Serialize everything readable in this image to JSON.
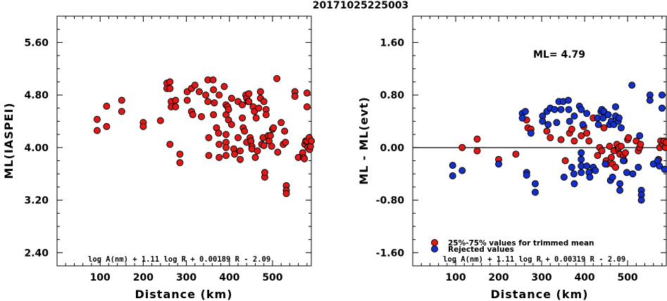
{
  "title": "20171025225003",
  "colors": {
    "accepted": "#e01818",
    "rejected": "#1530c8",
    "outline": "#000000"
  },
  "chart_data": [
    {
      "type": "scatter",
      "xlabel": "Distance (km)",
      "ylabel": "ML(IASPEI)",
      "xlim": [
        0,
        590
      ],
      "ylim": [
        2.2,
        6.0
      ],
      "x_ticks": [
        100,
        200,
        300,
        400,
        500
      ],
      "y_ticks": [
        2.4,
        3.2,
        4.0,
        4.8,
        5.6
      ],
      "y_tick_labels": [
        "2.40",
        "3.20",
        "4.00",
        "4.80",
        "5.60"
      ],
      "formula": "log A(nm) + 1.11 log R + 0.00189 R - 2.09",
      "series": [
        {
          "color": "#e01818",
          "points": [
            [
              93,
              4.43
            ],
            [
              93,
              4.26
            ],
            [
              115,
              4.63
            ],
            [
              115,
              4.32
            ],
            [
              150,
              4.72
            ],
            [
              150,
              4.55
            ],
            [
              200,
              4.38
            ],
            [
              200,
              4.32
            ],
            [
              240,
              4.41
            ],
            [
              255,
              4.98
            ],
            [
              255,
              4.9
            ],
            [
              262,
              5.0
            ],
            [
              262,
              4.9
            ],
            [
              262,
              4.05
            ],
            [
              265,
              4.7
            ],
            [
              265,
              4.62
            ],
            [
              275,
              4.72
            ],
            [
              275,
              4.62
            ],
            [
              285,
              3.9
            ],
            [
              285,
              3.77
            ],
            [
              302,
              4.85
            ],
            [
              302,
              4.72
            ],
            [
              312,
              4.9
            ],
            [
              312,
              4.55
            ],
            [
              315,
              4.5
            ],
            [
              320,
              4.95
            ],
            [
              330,
              4.85
            ],
            [
              335,
              4.47
            ],
            [
              345,
              4.8
            ],
            [
              350,
              5.03
            ],
            [
              350,
              4.7
            ],
            [
              352,
              4.15
            ],
            [
              352,
              3.88
            ],
            [
              362,
              5.03
            ],
            [
              363,
              4.88
            ],
            [
              363,
              4.5
            ],
            [
              365,
              4.68
            ],
            [
              370,
              4.3
            ],
            [
              375,
              4.22
            ],
            [
              376,
              4.8
            ],
            [
              376,
              4.05
            ],
            [
              376,
              3.85
            ],
            [
              388,
              4.93
            ],
            [
              392,
              4.65
            ],
            [
              392,
              4.5
            ],
            [
              392,
              4.2
            ],
            [
              392,
              4.08
            ],
            [
              392,
              4.0
            ],
            [
              392,
              3.88
            ],
            [
              396,
              4.62
            ],
            [
              398,
              4.58
            ],
            [
              398,
              4.42
            ],
            [
              405,
              4.75
            ],
            [
              405,
              4.35
            ],
            [
              410,
              3.98
            ],
            [
              412,
              3.9
            ],
            [
              420,
              4.7
            ],
            [
              420,
              4.15
            ],
            [
              425,
              3.82
            ],
            [
              425,
              3.95
            ],
            [
              430,
              4.65
            ],
            [
              430,
              4.45
            ],
            [
              432,
              4.3
            ],
            [
              435,
              4.25
            ],
            [
              438,
              4.8
            ],
            [
              440,
              4.75
            ],
            [
              440,
              4.08
            ],
            [
              443,
              4.7
            ],
            [
              445,
              4.82
            ],
            [
              445,
              4.7
            ],
            [
              448,
              4.15
            ],
            [
              450,
              4.1
            ],
            [
              452,
              4.02
            ],
            [
              452,
              3.98
            ],
            [
              455,
              4.62
            ],
            [
              458,
              4.55
            ],
            [
              460,
              3.85
            ],
            [
              462,
              4.45
            ],
            [
              465,
              3.95
            ],
            [
              468,
              4.6
            ],
            [
              472,
              4.85
            ],
            [
              472,
              4.75
            ],
            [
              475,
              4.05
            ],
            [
              478,
              4.15
            ],
            [
              480,
              4.7
            ],
            [
              480,
              4.03
            ],
            [
              482,
              3.55
            ],
            [
              482,
              3.62
            ],
            [
              485,
              4.58
            ],
            [
              485,
              4.5
            ],
            [
              490,
              4.18
            ],
            [
              492,
              4.1
            ],
            [
              495,
              4.18
            ],
            [
              498,
              4.02
            ],
            [
              500,
              4.28
            ],
            [
              502,
              4.3
            ],
            [
              510,
              5.05
            ],
            [
              512,
              3.93
            ],
            [
              520,
              4.38
            ],
            [
              525,
              4.05
            ],
            [
              528,
              4.25
            ],
            [
              530,
              4.08
            ],
            [
              532,
              3.42
            ],
            [
              532,
              3.35
            ],
            [
              532,
              3.3
            ],
            [
              552,
              4.85
            ],
            [
              552,
              4.78
            ],
            [
              560,
              3.85
            ],
            [
              570,
              3.92
            ],
            [
              572,
              3.85
            ],
            [
              574,
              3.83
            ],
            [
              575,
              4.05
            ],
            [
              577,
              4.1
            ],
            [
              580,
              4.83
            ],
            [
              580,
              4.62
            ],
            [
              580,
              4.1
            ],
            [
              582,
              4.0
            ],
            [
              585,
              4.15
            ],
            [
              586,
              3.97
            ],
            [
              588,
              4.02
            ],
            [
              590,
              4.1
            ]
          ]
        }
      ]
    },
    {
      "type": "scatter",
      "xlabel": "Distance (km)",
      "ylabel": "ML - ML(evt)",
      "xlim": [
        0,
        590
      ],
      "ylim": [
        -1.8,
        2.0
      ],
      "x_ticks": [
        100,
        200,
        300,
        400,
        500
      ],
      "y_ticks": [
        -1.6,
        -0.8,
        0.0,
        0.8,
        1.6
      ],
      "y_tick_labels": [
        "-1.60",
        "-0.80",
        "0.00",
        "0.80",
        "1.60"
      ],
      "hline": 0.0,
      "annotation": "ML= 4.79",
      "formula": "log A(nm) + 1.11 log R + 0.00319 R - 2.09",
      "legend": [
        "25%-75% values for trimmed mean",
        "Rejected values"
      ],
      "series": [
        {
          "name": "25%-75% values for trimmed mean",
          "color": "#e01818",
          "points": [
            [
              115,
              0.0
            ],
            [
              150,
              0.13
            ],
            [
              150,
              -0.05
            ],
            [
              200,
              -0.18
            ],
            [
              240,
              -0.1
            ],
            [
              265,
              0.42
            ],
            [
              268,
              0.3
            ],
            [
              275,
              0.28
            ],
            [
              312,
              0.25
            ],
            [
              320,
              0.15
            ],
            [
              345,
              0.12
            ],
            [
              355,
              -0.2
            ],
            [
              365,
              0.22
            ],
            [
              370,
              0.28
            ],
            [
              376,
              0.1
            ],
            [
              392,
              0.18
            ],
            [
              398,
              0.32
            ],
            [
              405,
              0.22
            ],
            [
              410,
              0.1
            ],
            [
              420,
              0.45
            ],
            [
              430,
              -0.12
            ],
            [
              435,
              0.0
            ],
            [
              440,
              -0.05
            ],
            [
              445,
              0.3
            ],
            [
              450,
              -0.2
            ],
            [
              452,
              -0.25
            ],
            [
              458,
              0.02
            ],
            [
              462,
              -0.15
            ],
            [
              465,
              -0.25
            ],
            [
              468,
              -0.05
            ],
            [
              472,
              -0.3
            ],
            [
              475,
              0.05
            ],
            [
              478,
              -0.02
            ],
            [
              480,
              0.0
            ],
            [
              482,
              -0.1
            ],
            [
              485,
              0.02
            ],
            [
              490,
              -0.12
            ],
            [
              492,
              -0.2
            ],
            [
              495,
              -0.08
            ],
            [
              500,
              0.12
            ],
            [
              502,
              0.15
            ],
            [
              520,
              0.1
            ],
            [
              525,
              -0.05
            ],
            [
              528,
              0.0
            ],
            [
              530,
              0.05
            ],
            [
              572,
              -0.18
            ],
            [
              575,
              0.0
            ],
            [
              577,
              0.1
            ],
            [
              582,
              0.05
            ],
            [
              585,
              0.1
            ],
            [
              588,
              0.0
            ],
            [
              590,
              0.08
            ]
          ]
        },
        {
          "name": "Rejected values",
          "color": "#1530c8",
          "points": [
            [
              93,
              -0.27
            ],
            [
              93,
              -0.43
            ],
            [
              115,
              -0.35
            ],
            [
              200,
              -0.25
            ],
            [
              255,
              0.52
            ],
            [
              255,
              0.45
            ],
            [
              262,
              0.55
            ],
            [
              265,
              -0.38
            ],
            [
              265,
              -0.42
            ],
            [
              275,
              0.22
            ],
            [
              285,
              -0.55
            ],
            [
              285,
              -0.68
            ],
            [
              302,
              0.48
            ],
            [
              302,
              0.4
            ],
            [
              312,
              0.55
            ],
            [
              315,
              0.35
            ],
            [
              320,
              0.6
            ],
            [
              330,
              0.58
            ],
            [
              335,
              0.38
            ],
            [
              340,
              0.7
            ],
            [
              345,
              0.58
            ],
            [
              350,
              0.7
            ],
            [
              352,
              -0.45
            ],
            [
              362,
              0.72
            ],
            [
              363,
              0.58
            ],
            [
              365,
              0.4
            ],
            [
              370,
              -0.3
            ],
            [
              375,
              -0.4
            ],
            [
              376,
              -0.55
            ],
            [
              376,
              0.48
            ],
            [
              388,
              0.63
            ],
            [
              392,
              0.58
            ],
            [
              392,
              -0.08
            ],
            [
              392,
              -0.18
            ],
            [
              392,
              -0.28
            ],
            [
              392,
              -0.38
            ],
            [
              396,
              0.35
            ],
            [
              405,
              -0.28
            ],
            [
              405,
              0.52
            ],
            [
              410,
              -0.38
            ],
            [
              412,
              -0.45
            ],
            [
              420,
              -0.3
            ],
            [
              425,
              -0.35
            ],
            [
              430,
              0.45
            ],
            [
              432,
              0.35
            ],
            [
              438,
              0.55
            ],
            [
              440,
              0.58
            ],
            [
              443,
              0.45
            ],
            [
              445,
              0.55
            ],
            [
              448,
              -0.25
            ],
            [
              455,
              0.5
            ],
            [
              458,
              0.35
            ],
            [
              460,
              -0.5
            ],
            [
              462,
              0.4
            ],
            [
              465,
              -0.45
            ],
            [
              468,
              0.35
            ],
            [
              472,
              0.62
            ],
            [
              472,
              0.48
            ],
            [
              478,
              0.4
            ],
            [
              480,
              0.45
            ],
            [
              482,
              -0.65
            ],
            [
              482,
              -0.55
            ],
            [
              485,
              0.3
            ],
            [
              490,
              -0.2
            ],
            [
              498,
              -0.38
            ],
            [
              510,
              0.95
            ],
            [
              512,
              -0.4
            ],
            [
              525,
              -0.3
            ],
            [
              528,
              0.18
            ],
            [
              532,
              -0.65
            ],
            [
              532,
              -0.72
            ],
            [
              532,
              -0.8
            ],
            [
              552,
              0.8
            ],
            [
              552,
              0.72
            ],
            [
              560,
              -0.25
            ],
            [
              570,
              -0.2
            ],
            [
              574,
              -0.28
            ],
            [
              580,
              0.8
            ],
            [
              580,
              0.6
            ],
            [
              586,
              -0.33
            ]
          ]
        }
      ]
    }
  ]
}
